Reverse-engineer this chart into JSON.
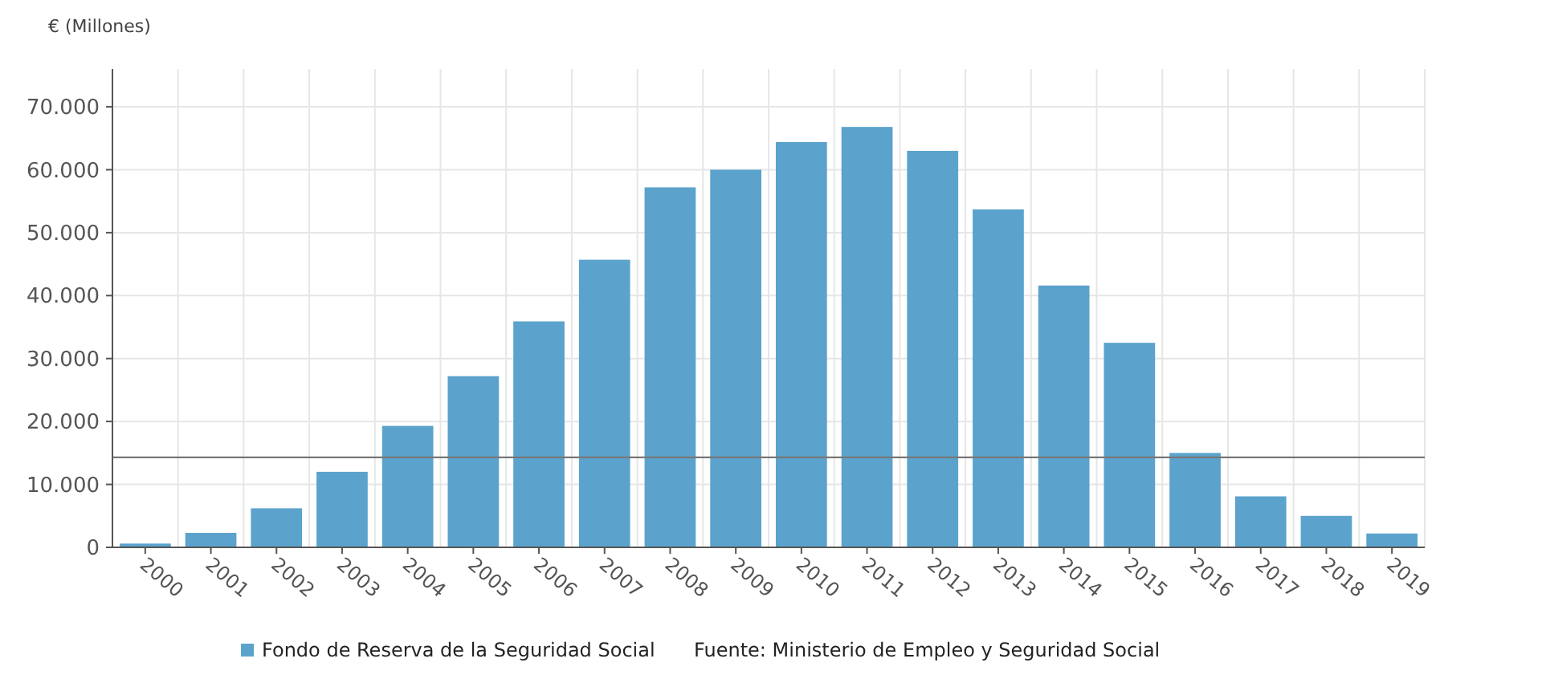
{
  "chart_data": {
    "type": "bar",
    "ylabel": "€ (Millones)",
    "categories": [
      "2000",
      "2001",
      "2002",
      "2003",
      "2004",
      "2005",
      "2006",
      "2007",
      "2008",
      "2009",
      "2010",
      "2011",
      "2012",
      "2013",
      "2014",
      "2015",
      "2016",
      "2017",
      "2018",
      "2019"
    ],
    "series": [
      {
        "name": "Fondo de Reserva de la Seguridad Social",
        "color": "#5ba3cc",
        "values": [
          600,
          2300,
          6200,
          12000,
          19300,
          27200,
          35900,
          45700,
          57200,
          60000,
          64400,
          66800,
          63000,
          53700,
          41600,
          32500,
          15000,
          8100,
          5000,
          2200
        ]
      }
    ],
    "ylim": [
      0,
      76000
    ],
    "yticks": [
      {
        "value": 0,
        "label": "0"
      },
      {
        "value": 10000,
        "label": "10.000"
      },
      {
        "value": 20000,
        "label": "20.000"
      },
      {
        "value": 30000,
        "label": "30.000"
      },
      {
        "value": 40000,
        "label": "40.000"
      },
      {
        "value": 50000,
        "label": "50.000"
      },
      {
        "value": 60000,
        "label": "60.000"
      },
      {
        "value": 70000,
        "label": "70.000"
      }
    ],
    "ref_lines": [
      {
        "axis": "y",
        "value": 14300,
        "color": "#777777"
      }
    ],
    "grid": true,
    "legend": "bottom",
    "annotations": [
      "Fuente: Ministerio de Empleo y Seguridad Social"
    ]
  }
}
